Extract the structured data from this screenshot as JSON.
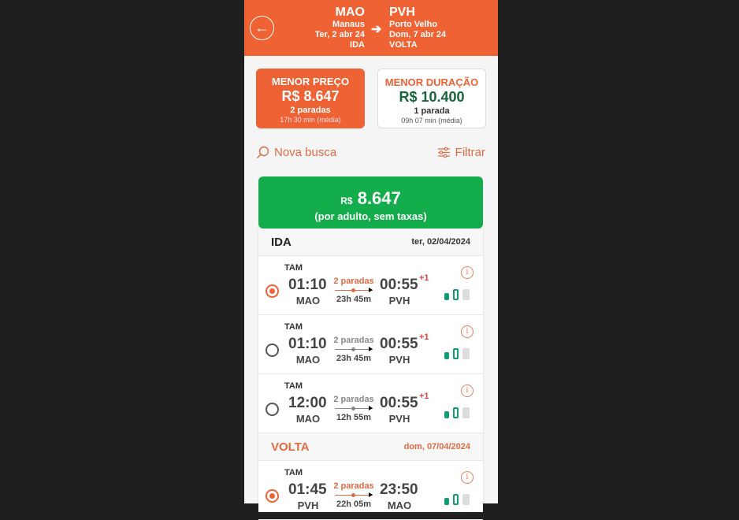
{
  "header": {
    "origin_code": "MAO",
    "origin_city": "Manaus",
    "origin_date": "Ter, 2 abr 24",
    "origin_label": "IDA",
    "dest_code": "PVH",
    "dest_city": "Porto Velho",
    "dest_date": "Dom, 7 abr 24",
    "dest_label": "VOLTA"
  },
  "cards": [
    {
      "title": "MENOR PREÇO",
      "price": "R$ 8.647",
      "stops": "2 paradas",
      "duration": "17h 30 min (média)"
    },
    {
      "title": "MENOR DURAÇÃO",
      "price": "R$ 10.400",
      "stops": "1 parada",
      "duration": "09h 07 min (média)"
    }
  ],
  "actions": {
    "new_search": "Nova busca",
    "filter": "Filtrar"
  },
  "price": {
    "currency": "R$",
    "amount": "8.647",
    "note": "(por adulto, sem taxas)"
  },
  "outbound": {
    "label": "IDA",
    "date": "ter, 02/04/2024"
  },
  "return": {
    "label": "VOLTA",
    "date": "dom, 07/04/2024"
  },
  "flights": [
    {
      "airline": "TAM",
      "dep": "01:10",
      "from": "MAO",
      "stops": "2 paradas",
      "dur": "23h 45m",
      "arr": "00:55",
      "plus": "+1",
      "to": "PVH",
      "selected": true
    },
    {
      "airline": "TAM",
      "dep": "01:10",
      "from": "MAO",
      "stops": "2 paradas",
      "dur": "23h 45m",
      "arr": "00:55",
      "plus": "+1",
      "to": "PVH",
      "selected": false
    },
    {
      "airline": "TAM",
      "dep": "12:00",
      "from": "MAO",
      "stops": "2 paradas",
      "dur": "12h 55m",
      "arr": "00:55",
      "plus": "+1",
      "to": "PVH",
      "selected": false
    },
    {
      "airline": "TAM",
      "dep": "01:45",
      "from": "PVH",
      "stops": "2 paradas",
      "dur": "22h 05m",
      "arr": "23:50",
      "plus": "",
      "to": "MAO",
      "selected": true
    }
  ],
  "colors": {
    "brand": "#ee6234",
    "price_green": "#13ad4b",
    "bag_green": "#139a76"
  }
}
